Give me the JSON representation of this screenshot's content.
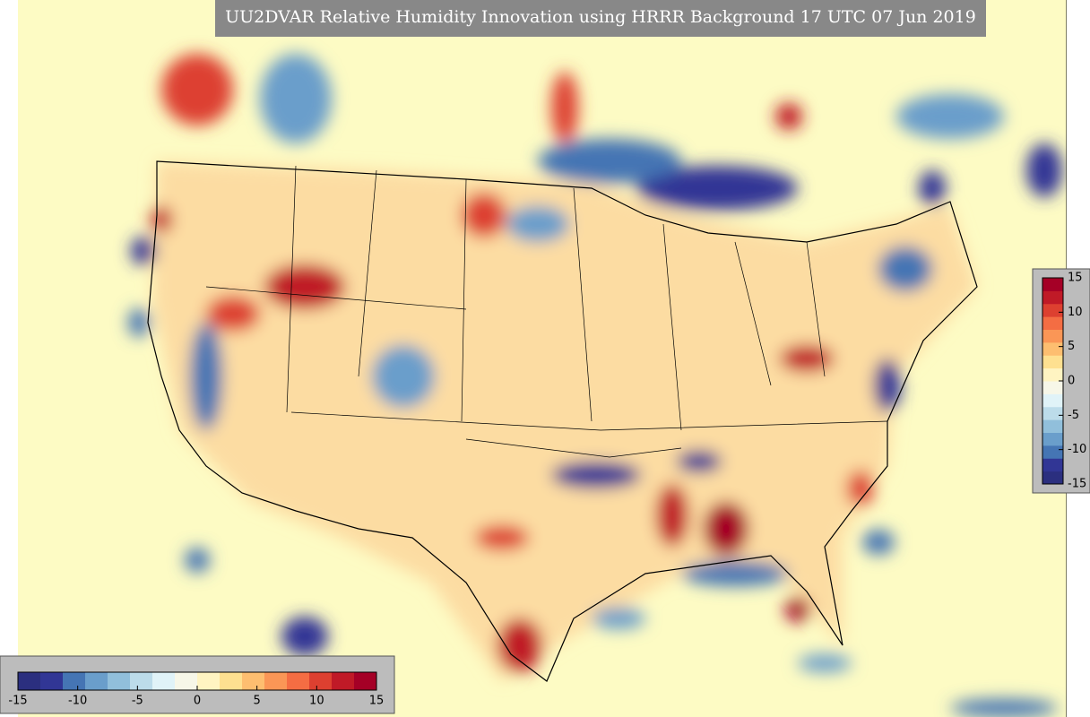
{
  "title": "UU2DVAR Relative Humidity Innovation using HRRR Background 17 UTC 07 Jun 2019",
  "colorbar": {
    "vmin": -15,
    "vmax": 15,
    "ticks": [
      -15,
      -10,
      -5,
      0,
      5,
      10,
      15
    ],
    "colors": [
      "#2b2f7f",
      "#313695",
      "#4575b4",
      "#6a9ecb",
      "#91bfdb",
      "#bcdcea",
      "#e0f3f8",
      "#f7f7e8",
      "#fff4c2",
      "#fee090",
      "#fdbe70",
      "#fa9656",
      "#f46d43",
      "#dd4030",
      "#c01a27",
      "#a50026"
    ]
  }
}
